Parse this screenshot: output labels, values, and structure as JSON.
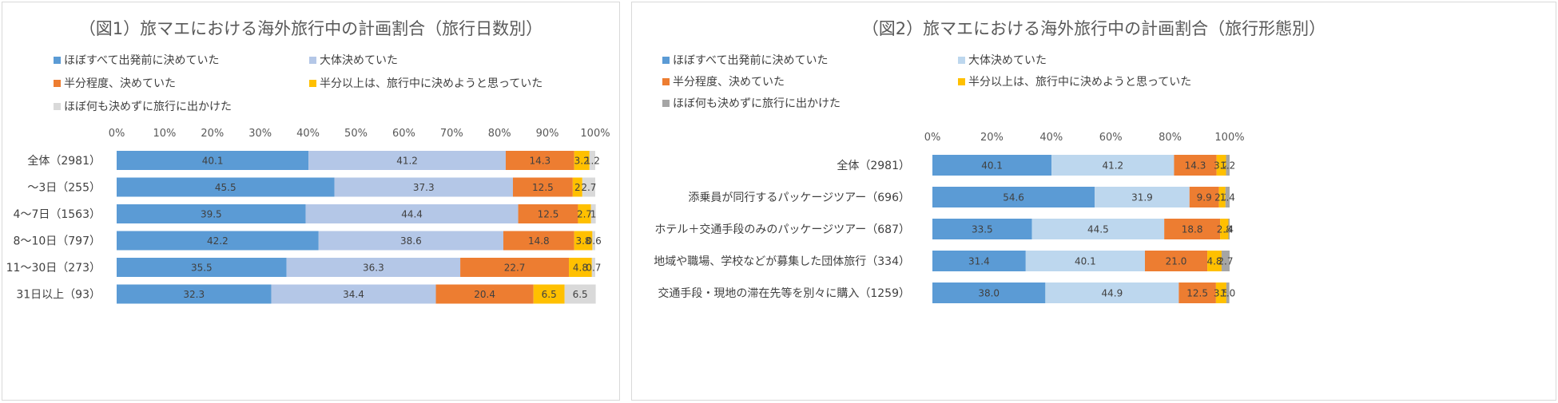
{
  "colors": {
    "series1": "#5b9bd5",
    "series2_left": "#b4c7e7",
    "series2_right": "#bdd7ee",
    "series3": "#ed7d31",
    "series4": "#ffc000",
    "series5_left": "#d9d9d9",
    "series5_right": "#a5a5a5"
  },
  "chart_data": [
    {
      "type": "bar",
      "stacked": true,
      "orientation": "horizontal",
      "title": "（図1）旅マエにおける海外旅行中の計画割合（旅行日数別）",
      "xlim": [
        0,
        100
      ],
      "x_ticks": [
        "0%",
        "10%",
        "20%",
        "30%",
        "40%",
        "50%",
        "60%",
        "70%",
        "80%",
        "90%",
        "100%"
      ],
      "legend_position": "top",
      "categories": [
        "全体（2981）",
        "～3日（255）",
        "4～7日（1563）",
        "8～10日（797）",
        "11～30日（273）",
        "31日以上（93）"
      ],
      "series": [
        {
          "name": "ほぼすべて出発前に決めていた",
          "values": [
            40.1,
            45.5,
            39.5,
            42.2,
            35.5,
            32.3
          ],
          "labels": [
            "40.1",
            "45.5",
            "39.5",
            "42.2",
            "35.5",
            "32.3"
          ]
        },
        {
          "name": "大体決めていた",
          "values": [
            41.2,
            37.3,
            44.4,
            38.6,
            36.3,
            34.4
          ],
          "labels": [
            "41.2",
            "37.3",
            "44.4",
            "38.6",
            "36.3",
            "34.4"
          ]
        },
        {
          "name": "半分程度、決めていた",
          "values": [
            14.3,
            12.5,
            12.5,
            14.8,
            22.7,
            20.4
          ],
          "labels": [
            "14.3",
            "12.5",
            "12.5",
            "14.8",
            "22.7",
            "20.4"
          ]
        },
        {
          "name": "半分以上は、旅行中に決めようと思っていた",
          "values": [
            3.2,
            2.0,
            2.7,
            3.8,
            4.8,
            6.5
          ],
          "labels": [
            "3.2",
            "2",
            "2.7",
            "3.8",
            "4.8",
            "6.5"
          ]
        },
        {
          "name": "ほぼ何も決めずに旅行に出かけた",
          "values": [
            1.2,
            2.7,
            1.0,
            0.6,
            0.7,
            6.5
          ],
          "labels": [
            "1.2",
            "2.7",
            "1",
            "0.6",
            "0.7",
            "6.5"
          ]
        }
      ]
    },
    {
      "type": "bar",
      "stacked": true,
      "orientation": "horizontal",
      "title": "（図2）旅マエにおける海外旅行中の計画割合（旅行形態別）",
      "xlim": [
        0,
        100
      ],
      "x_ticks": [
        "0%",
        "20%",
        "40%",
        "60%",
        "80%",
        "100%"
      ],
      "legend_position": "top",
      "categories": [
        "全体（2981）",
        "添乗員が同行するパッケージツアー（696）",
        "ホテル＋交通手段のみのパッケージツアー（687）",
        "地域や職場、学校などが募集した団体旅行（334）",
        "交通手段・現地の滞在先等を別々に購入（1259）"
      ],
      "series": [
        {
          "name": "ほぼすべて出発前に決めていた",
          "values": [
            40.1,
            54.6,
            33.5,
            31.4,
            38.0
          ],
          "labels": [
            "40.1",
            "54.6",
            "33.5",
            "31.4",
            "38.0"
          ]
        },
        {
          "name": "大体決めていた",
          "values": [
            41.2,
            31.9,
            44.5,
            40.1,
            44.9
          ],
          "labels": [
            "41.2",
            "31.9",
            "44.5",
            "40.1",
            "44.9"
          ]
        },
        {
          "name": "半分程度、決めていた",
          "values": [
            14.3,
            9.9,
            18.8,
            21.0,
            12.5
          ],
          "labels": [
            "14.3",
            "9.9",
            "18.8",
            "21.0",
            "12.5"
          ]
        },
        {
          "name": "半分以上は、旅行中に決めようと思っていた",
          "values": [
            3.2,
            2.2,
            2.8,
            4.8,
            3.5
          ],
          "labels": [
            "3.2",
            "2.2",
            "2.8",
            "4.8",
            "3.5"
          ]
        },
        {
          "name": "ほぼ何も決めずに旅行に出かけた",
          "values": [
            1.2,
            1.4,
            0.4,
            2.7,
            1.0
          ],
          "labels": [
            "1.2",
            "1.4",
            ".4",
            "2.7",
            "1.0"
          ]
        }
      ]
    }
  ]
}
